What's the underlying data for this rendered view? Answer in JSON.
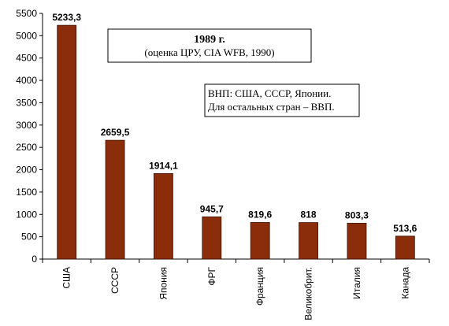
{
  "chart_data": {
    "type": "bar",
    "categories": [
      "США",
      "СССР",
      "Япония",
      "ФРГ",
      "Франция",
      "Великобрит.",
      "Италия",
      "Канада"
    ],
    "values": [
      5233.3,
      2659.5,
      1914.1,
      945.7,
      819.6,
      818,
      803.3,
      513.6
    ],
    "value_labels": [
      "5233,3",
      "2659,5",
      "1914,1",
      "945,7",
      "819,6",
      "818",
      "803,3",
      "513,6"
    ],
    "ylim": [
      0,
      5500
    ],
    "yticks": [
      0,
      500,
      1000,
      1500,
      2000,
      2500,
      3000,
      3500,
      4000,
      4500,
      5000,
      5500
    ],
    "grid": false,
    "bar_color": "#8B2C0A",
    "bar_stroke": "#3a1204",
    "title": "1989 г.",
    "subtitle": "(оценка ЦРУ, CIA WFB, 1990)",
    "note_lines": [
      "ВНП:  США, СССР, Японии.",
      "Для остальных стран – ВВП."
    ]
  }
}
